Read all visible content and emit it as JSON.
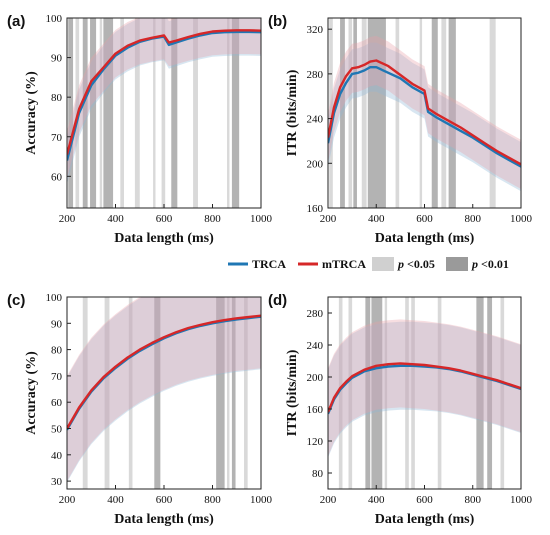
{
  "colors": {
    "trca": "#1f77b4",
    "mtrca": "#d62728",
    "sig05": "#d0d0d0",
    "sig01": "#9a9a9a"
  },
  "legend": {
    "trca": "TRCA",
    "mtrca": "mTRCA",
    "p05_italic": "p",
    "p05_rest": " <0.05",
    "p01_italic": "p",
    "p01_rest": " <0.01"
  },
  "chart_data": [
    {
      "id": "a",
      "panel_label": "(a)",
      "type": "line",
      "xlabel": "Data length (ms)",
      "ylabel": "Accuracy (%)",
      "xlim": [
        200,
        1000
      ],
      "ylim": [
        52,
        100
      ],
      "xticks": [
        200,
        400,
        600,
        800,
        1000
      ],
      "yticks": [
        60,
        70,
        80,
        90,
        100
      ],
      "x": [
        200,
        250,
        300,
        350,
        400,
        450,
        500,
        550,
        600,
        620,
        650,
        700,
        750,
        800,
        850,
        900,
        950,
        1000
      ],
      "series": [
        {
          "name": "TRCA",
          "values": [
            64,
            76,
            83,
            87,
            90.5,
            92.5,
            94,
            94.8,
            95.3,
            93.2,
            93.8,
            94.8,
            95.6,
            96.2,
            96.4,
            96.5,
            96.5,
            96.4
          ],
          "band": 6
        },
        {
          "name": "mTRCA",
          "values": [
            65.5,
            77,
            84,
            87.5,
            91,
            93,
            94.3,
            95,
            95.6,
            93.8,
            94.3,
            95.2,
            96,
            96.6,
            96.8,
            96.9,
            96.9,
            96.8
          ],
          "band": 6
        }
      ],
      "sig_regions": [
        {
          "from": 205,
          "to": 225,
          "level": "p<0.01"
        },
        {
          "from": 235,
          "to": 250,
          "level": "p<0.05"
        },
        {
          "from": 265,
          "to": 285,
          "level": "p<0.01"
        },
        {
          "from": 295,
          "to": 320,
          "level": "p<0.01"
        },
        {
          "from": 335,
          "to": 345,
          "level": "p<0.05"
        },
        {
          "from": 350,
          "to": 390,
          "level": "p<0.01"
        },
        {
          "from": 420,
          "to": 435,
          "level": "p<0.05"
        },
        {
          "from": 480,
          "to": 500,
          "level": "p<0.05"
        },
        {
          "from": 555,
          "to": 565,
          "level": "p<0.05"
        },
        {
          "from": 590,
          "to": 605,
          "level": "p<0.05"
        },
        {
          "from": 630,
          "to": 655,
          "level": "p<0.01"
        },
        {
          "from": 720,
          "to": 740,
          "level": "p<0.05"
        },
        {
          "from": 860,
          "to": 870,
          "level": "p<0.05"
        },
        {
          "from": 880,
          "to": 910,
          "level": "p<0.01"
        }
      ]
    },
    {
      "id": "b",
      "panel_label": "(b)",
      "type": "line",
      "xlabel": "Data length (ms)",
      "ylabel": "ITR (bits/min)",
      "xlim": [
        200,
        1000
      ],
      "ylim": [
        160,
        330
      ],
      "xticks": [
        200,
        400,
        600,
        800,
        1000
      ],
      "yticks": [
        160,
        200,
        240,
        280,
        320
      ],
      "x": [
        200,
        225,
        250,
        275,
        300,
        325,
        350,
        375,
        400,
        450,
        500,
        550,
        600,
        615,
        650,
        700,
        750,
        800,
        850,
        900,
        950,
        1000
      ],
      "series": [
        {
          "name": "TRCA",
          "values": [
            218,
            245,
            262,
            272,
            280,
            281,
            283,
            286,
            286,
            281,
            276,
            268,
            262,
            246,
            241,
            235,
            229,
            223,
            216,
            209,
            203,
            197
          ],
          "band": 22
        },
        {
          "name": "mTRCA",
          "values": [
            223,
            250,
            268,
            278,
            285,
            286,
            288,
            291,
            292,
            287,
            279,
            271,
            265,
            249,
            244,
            238,
            232,
            225,
            218,
            211,
            205,
            199
          ],
          "band": 22
        }
      ],
      "sig_regions": [
        {
          "from": 205,
          "to": 220,
          "level": "p<0.05"
        },
        {
          "from": 250,
          "to": 270,
          "level": "p<0.01"
        },
        {
          "from": 285,
          "to": 300,
          "level": "p<0.05"
        },
        {
          "from": 305,
          "to": 320,
          "level": "p<0.01"
        },
        {
          "from": 340,
          "to": 360,
          "level": "p<0.05"
        },
        {
          "from": 365,
          "to": 440,
          "level": "p<0.01"
        },
        {
          "from": 480,
          "to": 495,
          "level": "p<0.05"
        },
        {
          "from": 580,
          "to": 590,
          "level": "p<0.05"
        },
        {
          "from": 630,
          "to": 655,
          "level": "p<0.01"
        },
        {
          "from": 670,
          "to": 690,
          "level": "p<0.05"
        },
        {
          "from": 700,
          "to": 730,
          "level": "p<0.01"
        },
        {
          "from": 870,
          "to": 895,
          "level": "p<0.05"
        }
      ]
    },
    {
      "id": "c",
      "panel_label": "(c)",
      "type": "line",
      "xlabel": "Data length (ms)",
      "ylabel": "Accuracy (%)",
      "xlim": [
        200,
        1000
      ],
      "ylim": [
        27,
        100
      ],
      "xticks": [
        200,
        400,
        600,
        800,
        1000
      ],
      "yticks": [
        30,
        40,
        50,
        60,
        70,
        80,
        90,
        100
      ],
      "x": [
        200,
        250,
        300,
        350,
        400,
        450,
        500,
        550,
        600,
        650,
        700,
        750,
        800,
        850,
        900,
        950,
        1000
      ],
      "series": [
        {
          "name": "TRCA",
          "values": [
            49.5,
            57.5,
            64,
            69,
            73,
            76.5,
            79.5,
            82,
            84.3,
            86.2,
            87.8,
            89,
            90,
            90.8,
            91.5,
            92,
            92.5
          ],
          "band": 20
        },
        {
          "name": "mTRCA",
          "values": [
            50,
            58,
            64.5,
            69.5,
            73.5,
            77,
            80,
            82.5,
            84.7,
            86.6,
            88.2,
            89.4,
            90.4,
            91.2,
            91.9,
            92.4,
            92.9
          ],
          "band": 20
        }
      ],
      "sig_regions": [
        {
          "from": 265,
          "to": 285,
          "level": "p<0.05"
        },
        {
          "from": 355,
          "to": 375,
          "level": "p<0.05"
        },
        {
          "from": 455,
          "to": 470,
          "level": "p<0.05"
        },
        {
          "from": 560,
          "to": 585,
          "level": "p<0.01"
        },
        {
          "from": 815,
          "to": 850,
          "level": "p<0.01"
        },
        {
          "from": 860,
          "to": 870,
          "level": "p<0.05"
        },
        {
          "from": 880,
          "to": 895,
          "level": "p<0.01"
        },
        {
          "from": 930,
          "to": 945,
          "level": "p<0.05"
        }
      ]
    },
    {
      "id": "d",
      "panel_label": "(d)",
      "type": "line",
      "xlabel": "Data length (ms)",
      "ylabel": "ITR (bits/min)",
      "xlim": [
        200,
        1000
      ],
      "ylim": [
        60,
        300
      ],
      "xticks": [
        200,
        400,
        600,
        800,
        1000
      ],
      "yticks": [
        80,
        120,
        160,
        200,
        240,
        280
      ],
      "x": [
        200,
        225,
        250,
        275,
        300,
        350,
        400,
        450,
        500,
        550,
        600,
        650,
        700,
        750,
        800,
        850,
        900,
        950,
        1000
      ],
      "series": [
        {
          "name": "TRCA",
          "values": [
            154,
            172,
            184,
            192,
            199,
            207,
            211,
            213,
            214,
            214,
            213,
            212,
            210,
            207,
            203,
            199,
            195,
            190,
            185
          ],
          "band": 55
        },
        {
          "name": "mTRCA",
          "values": [
            156,
            174,
            186,
            194,
            201,
            209,
            214,
            216,
            217,
            216,
            215,
            213,
            211,
            208,
            204,
            200,
            196,
            191,
            186
          ],
          "band": 55
        }
      ],
      "sig_regions": [
        {
          "from": 245,
          "to": 260,
          "level": "p<0.05"
        },
        {
          "from": 285,
          "to": 300,
          "level": "p<0.05"
        },
        {
          "from": 355,
          "to": 375,
          "level": "p<0.01"
        },
        {
          "from": 380,
          "to": 425,
          "level": "p<0.01"
        },
        {
          "from": 435,
          "to": 445,
          "level": "p<0.05"
        },
        {
          "from": 520,
          "to": 535,
          "level": "p<0.05"
        },
        {
          "from": 545,
          "to": 560,
          "level": "p<0.05"
        },
        {
          "from": 655,
          "to": 670,
          "level": "p<0.05"
        },
        {
          "from": 815,
          "to": 845,
          "level": "p<0.01"
        },
        {
          "from": 860,
          "to": 880,
          "level": "p<0.01"
        },
        {
          "from": 915,
          "to": 930,
          "level": "p<0.05"
        }
      ]
    }
  ]
}
